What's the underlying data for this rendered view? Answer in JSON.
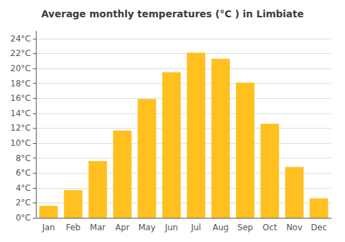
{
  "chart_data": {
    "type": "bar",
    "title": "Average monthly temperatures (°C ) in Limbiate",
    "categories": [
      "Jan",
      "Feb",
      "Mar",
      "Apr",
      "May",
      "Jun",
      "Jul",
      "Aug",
      "Sep",
      "Oct",
      "Nov",
      "Dec"
    ],
    "values": [
      1.6,
      3.7,
      7.6,
      11.7,
      15.9,
      19.5,
      22.1,
      21.3,
      18.1,
      12.6,
      6.8,
      2.6
    ],
    "color": "#FFC020",
    "ylim": [
      0,
      25
    ],
    "yticks": [
      {
        "value": 0,
        "label": "0°C"
      },
      {
        "value": 2,
        "label": "2°C"
      },
      {
        "value": 4,
        "label": "4°C"
      },
      {
        "value": 6,
        "label": "6°C"
      },
      {
        "value": 8,
        "label": "8°C"
      },
      {
        "value": 10,
        "label": "10°C"
      },
      {
        "value": 12,
        "label": "12°C"
      },
      {
        "value": 14,
        "label": "14°C"
      },
      {
        "value": 16,
        "label": "16°C"
      },
      {
        "value": 18,
        "label": "18°C"
      },
      {
        "value": 20,
        "label": "20°C"
      },
      {
        "value": 22,
        "label": "22°C"
      },
      {
        "value": 24,
        "label": "24°C"
      }
    ],
    "grid": true
  }
}
